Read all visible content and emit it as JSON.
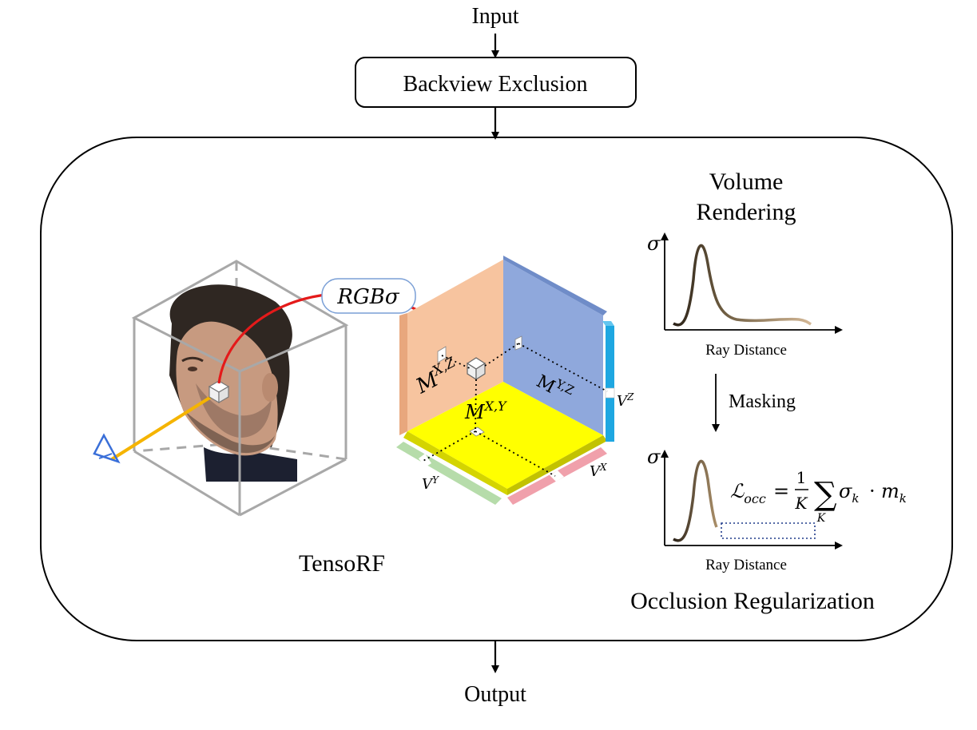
{
  "flow": {
    "input_label": "Input",
    "output_label": "Output",
    "backview_label": "Backview Exclusion"
  },
  "tensorf": {
    "label": "TensoRF",
    "rgb_sigma": "RGBσ",
    "planes": {
      "mxz": {
        "base": "M",
        "sup": "X,Z"
      },
      "myz": {
        "base": "M",
        "sup": "Y,Z"
      },
      "mxy": {
        "base": "M",
        "sup": "X,Y"
      }
    },
    "vectors": {
      "vx": {
        "base": "V",
        "sup": "X"
      },
      "vy": {
        "base": "V",
        "sup": "Y"
      },
      "vz": {
        "base": "V",
        "sup": "Z"
      }
    }
  },
  "volume_rendering": {
    "title_line1": "Volume",
    "title_line2": "Rendering",
    "y_axis": "σ",
    "x_axis": "Ray Distance",
    "masking_label": "Masking"
  },
  "occlusion": {
    "y_axis": "σ",
    "x_axis": "Ray Distance",
    "title": "Occlusion Regularization",
    "loss": {
      "lhs_symbol": "ℒ",
      "lhs_sub": "occ",
      "equals": "=",
      "frac_num": "1",
      "frac_den": "K",
      "sum_symbol": "∑",
      "sum_sub": "K",
      "term1": "σ",
      "term1_sub": "k",
      "dot": "·",
      "term2": "m",
      "term2_sub": "k"
    }
  },
  "colors": {
    "plane_xz": "#f7c49f",
    "plane_yz": "#8fa8dc",
    "plane_xy": "#ffff00",
    "vector_z": "#1ea7e1",
    "vector_x": "#f0a0ab",
    "vector_y": "#b6dcaa",
    "ray_red": "#e41a1a",
    "view_ray": "#f5b400",
    "cube_edge": "#a8a8a8",
    "curve_dark": "#3a3022",
    "curve_light": "#c9ad86",
    "bubble_border": "#7a9fd6",
    "eye": "#3a6fd8"
  }
}
